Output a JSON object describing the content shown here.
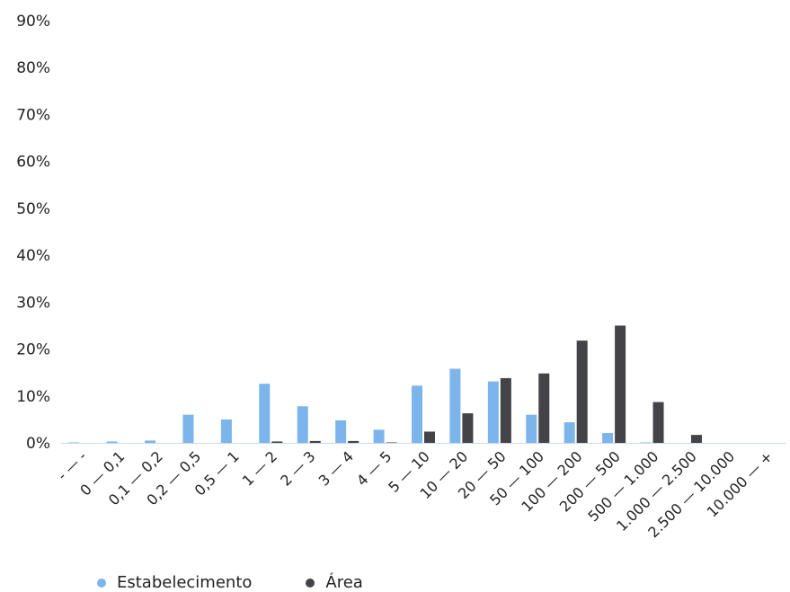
{
  "chart_data": {
    "type": "bar",
    "title": "",
    "categories": [
      "- — -",
      "0 — 0,1",
      "0,1 — 0,2",
      "0,2 — 0,5",
      "0,5 — 1",
      "1 — 2",
      "2 — 3",
      "3 — 4",
      "4 — 5",
      "5 — 10",
      "10 — 20",
      "20 — 50",
      "50 — 100",
      "100 — 200",
      "200 — 500",
      "500 — 1.000",
      "1.000 — 2.500",
      "2.500 — 10.000",
      "10.000 — +"
    ],
    "series": [
      {
        "name": "Estabelecimento",
        "color": "#7cb5ec",
        "values": [
          0.1,
          0.3,
          0.5,
          6.0,
          5.0,
          12.6,
          7.8,
          4.8,
          2.8,
          12.2,
          15.8,
          13.1,
          6.0,
          4.4,
          2.1,
          0.1,
          0.0,
          0.0,
          0.0
        ]
      },
      {
        "name": "Área",
        "color": "#434348",
        "values": [
          0.0,
          0.0,
          0.0,
          0.0,
          0.0,
          0.3,
          0.4,
          0.4,
          0.1,
          2.4,
          6.3,
          13.8,
          14.8,
          21.8,
          25.0,
          8.7,
          1.7,
          0.0,
          0.0
        ]
      }
    ],
    "yticks": [
      "0%",
      "10%",
      "20%",
      "30%",
      "40%",
      "50%",
      "60%",
      "70%",
      "80%",
      "90%"
    ],
    "ylim": [
      0,
      90
    ],
    "legend_position": "bottom-left",
    "grid": false
  }
}
